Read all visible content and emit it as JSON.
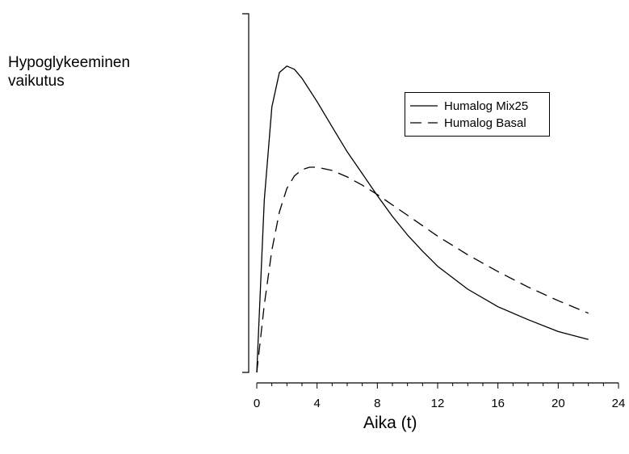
{
  "chart_data": {
    "type": "line",
    "title": "",
    "ylabel_lines": [
      "Hypoglykeeminen",
      "vaikutus"
    ],
    "xlabel": "Aika (t)",
    "xlim": [
      0,
      24
    ],
    "ylim": [
      0,
      1
    ],
    "x_ticks": [
      0,
      4,
      8,
      12,
      16,
      20,
      24
    ],
    "x_minor_step": 1,
    "grid": false,
    "legend_position": "upper-right",
    "series": [
      {
        "name": "Humalog Mix25",
        "style": "solid",
        "color": "#000000",
        "points": [
          [
            0,
            0
          ],
          [
            0.5,
            0.48
          ],
          [
            1,
            0.74
          ],
          [
            1.5,
            0.836
          ],
          [
            2,
            0.854
          ],
          [
            2.5,
            0.845
          ],
          [
            3,
            0.82
          ],
          [
            4,
            0.755
          ],
          [
            5,
            0.685
          ],
          [
            6,
            0.615
          ],
          [
            7,
            0.554
          ],
          [
            8,
            0.493
          ],
          [
            9,
            0.435
          ],
          [
            10,
            0.383
          ],
          [
            11,
            0.338
          ],
          [
            12,
            0.296
          ],
          [
            14,
            0.232
          ],
          [
            16,
            0.183
          ],
          [
            18,
            0.147
          ],
          [
            20,
            0.114
          ],
          [
            22,
            0.092
          ]
        ]
      },
      {
        "name": "Humalog Basal",
        "style": "dashed",
        "color": "#000000",
        "points": [
          [
            0,
            0
          ],
          [
            0.5,
            0.188
          ],
          [
            1,
            0.341
          ],
          [
            1.5,
            0.447
          ],
          [
            2,
            0.513
          ],
          [
            2.5,
            0.548
          ],
          [
            3,
            0.565
          ],
          [
            3.5,
            0.572
          ],
          [
            4,
            0.572
          ],
          [
            5,
            0.563
          ],
          [
            6,
            0.545
          ],
          [
            7,
            0.522
          ],
          [
            8,
            0.496
          ],
          [
            9,
            0.467
          ],
          [
            10,
            0.438
          ],
          [
            12,
            0.38
          ],
          [
            14,
            0.328
          ],
          [
            16,
            0.281
          ],
          [
            18,
            0.238
          ],
          [
            20,
            0.2
          ],
          [
            22,
            0.165
          ]
        ]
      }
    ]
  }
}
